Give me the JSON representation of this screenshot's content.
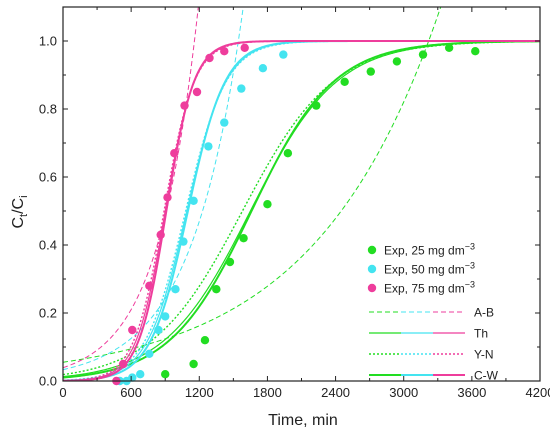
{
  "colors": {
    "c25": "#22dd22",
    "c50": "#44e4f0",
    "c75": "#ee3d9c"
  },
  "chart_data": {
    "type": "scatter",
    "xlabel": "Time, min",
    "ylabel_main": "C",
    "ylabel_sub1": "t",
    "ylabel_slash": "/C",
    "ylabel_sub2": "i",
    "xlim": [
      0,
      4200
    ],
    "ylim": [
      0,
      1.1
    ],
    "x_ticks": [
      0,
      600,
      1200,
      1800,
      2400,
      3000,
      3600,
      4200
    ],
    "y_ticks": [
      0.0,
      0.2,
      0.4,
      0.6,
      0.8,
      1.0
    ],
    "x_tick_labels": [
      "0",
      "600",
      "1200",
      "1800",
      "2400",
      "3000",
      "3600",
      "4200"
    ],
    "y_tick_labels": [
      "0.0",
      "0.2",
      "0.4",
      "0.6",
      "0.8",
      "1.0"
    ],
    "grid": false,
    "legend_position": "bottom-right",
    "series": [
      {
        "name": "Exp, 25 mg dm",
        "sup": "−3",
        "color_key": "c25",
        "points": [
          [
            900,
            0.02
          ],
          [
            1150,
            0.05
          ],
          [
            1250,
            0.12
          ],
          [
            1350,
            0.27
          ],
          [
            1470,
            0.35
          ],
          [
            1590,
            0.42
          ],
          [
            1800,
            0.52
          ],
          [
            1980,
            0.67
          ],
          [
            2230,
            0.81
          ],
          [
            2480,
            0.88
          ],
          [
            2710,
            0.91
          ],
          [
            2940,
            0.94
          ],
          [
            3170,
            0.96
          ],
          [
            3400,
            0.98
          ],
          [
            3630,
            0.97
          ]
        ]
      },
      {
        "name": "Exp, 50 mg dm",
        "sup": "−3",
        "color_key": "c50",
        "points": [
          [
            500,
            0.0
          ],
          [
            560,
            0.0
          ],
          [
            610,
            0.01
          ],
          [
            680,
            0.02
          ],
          [
            760,
            0.08
          ],
          [
            840,
            0.15
          ],
          [
            900,
            0.19
          ],
          [
            990,
            0.27
          ],
          [
            1060,
            0.41
          ],
          [
            1150,
            0.53
          ],
          [
            1280,
            0.69
          ],
          [
            1420,
            0.76
          ],
          [
            1570,
            0.86
          ],
          [
            1760,
            0.92
          ],
          [
            1940,
            0.96
          ]
        ]
      },
      {
        "name": "Exp, 75 mg dm",
        "sup": "−3",
        "color_key": "c75",
        "points": [
          [
            470,
            0.0
          ],
          [
            530,
            0.05
          ],
          [
            610,
            0.15
          ],
          [
            760,
            0.28
          ],
          [
            860,
            0.43
          ],
          [
            920,
            0.54
          ],
          [
            980,
            0.67
          ],
          [
            1070,
            0.81
          ],
          [
            1180,
            0.85
          ],
          [
            1290,
            0.95
          ],
          [
            1420,
            0.97
          ],
          [
            1600,
            0.98
          ]
        ]
      }
    ],
    "models": [
      {
        "name": "A-B",
        "style": "dash"
      },
      {
        "name": "Th",
        "style": "solid-thin"
      },
      {
        "name": "Y-N",
        "style": "dot"
      },
      {
        "name": "C-W",
        "style": "solid-thick"
      }
    ],
    "model_params": {
      "25": {
        "t50": 1650,
        "k": 0.00263,
        "ab_t": 2900,
        "ab_k": 0.0009,
        "ab_max": 0.75,
        "yn_t": 1580,
        "yn_k": 0.0025
      },
      "50": {
        "t50": 1090,
        "k": 0.0058,
        "ab_t": 1530,
        "ab_k": 0.0022,
        "ab_max": 0.97,
        "yn_t": 1080,
        "yn_k": 0.0056
      },
      "75": {
        "t50": 900,
        "k": 0.0078,
        "ab_t": 1150,
        "ab_k": 0.0028,
        "ab_max": 0.98,
        "yn_t": 890,
        "yn_k": 0.0075
      }
    }
  }
}
